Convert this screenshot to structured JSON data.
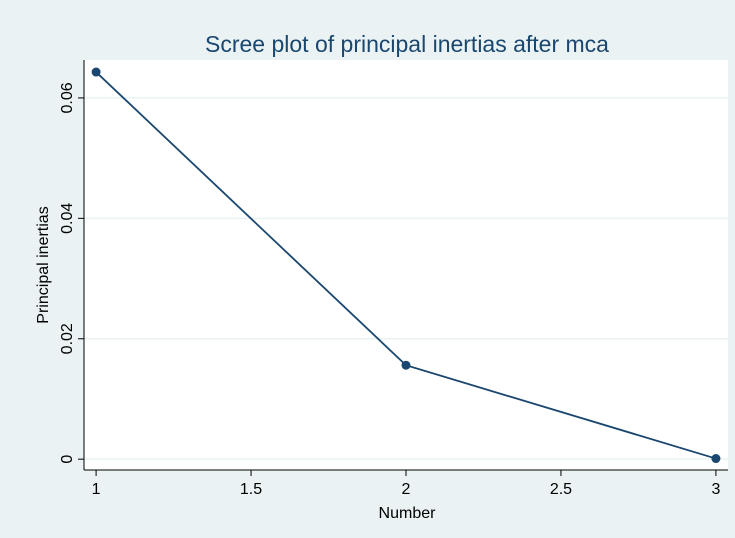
{
  "chart_data": {
    "type": "line",
    "title": "Scree plot of principal inertias after mca",
    "x_label": "Number",
    "y_label": "Principal inertias",
    "x": [
      1,
      2,
      3
    ],
    "series": [
      {
        "name": "Principal inertias",
        "color": "#1a476f",
        "values": [
          0.0643,
          0.0156,
          0.0001
        ]
      }
    ],
    "xlim": [
      0.961,
      3.039
    ],
    "xticks": [
      1,
      1.5,
      2,
      2.5,
      3
    ],
    "ylim": [
      -0.0018,
      0.0663
    ],
    "yticks": [
      0,
      0.02,
      0.04,
      0.06
    ],
    "grid": true
  }
}
